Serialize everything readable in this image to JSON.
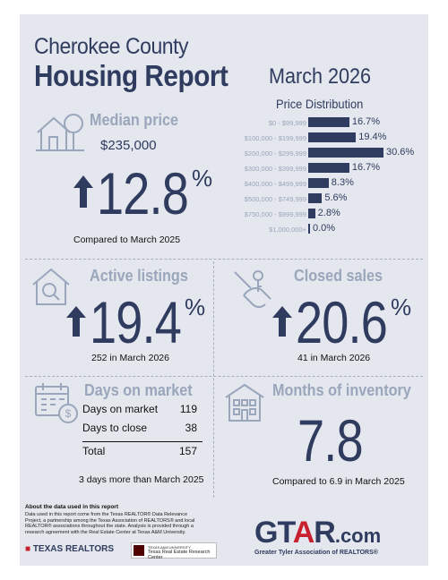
{
  "header": {
    "county": "Cherokee County",
    "report": "Housing Report",
    "month": "March 2026"
  },
  "median_price": {
    "heading": "Median price",
    "price": "$235,000",
    "change": "12.8",
    "pct": "%",
    "compare": "Compared to March 2025",
    "icon": "house-tree-icon"
  },
  "price_distribution": {
    "title": "Price Distribution",
    "rows": [
      {
        "label": "$0 - $99,999",
        "value": 16.7,
        "text": "16.7%"
      },
      {
        "label": "$100,000 - $199,999",
        "value": 19.4,
        "text": "19.4%"
      },
      {
        "label": "$200,000 - $299,999",
        "value": 30.6,
        "text": "30.6%"
      },
      {
        "label": "$300,000 - $399,999",
        "value": 16.7,
        "text": "16.7%"
      },
      {
        "label": "$400,000 - $499,999",
        "value": 8.3,
        "text": "8.3%"
      },
      {
        "label": "$500,000 - $749,999",
        "value": 5.6,
        "text": "5.6%"
      },
      {
        "label": "$750,000 - $999,999",
        "value": 2.8,
        "text": "2.8%"
      },
      {
        "label": "$1,000,000+",
        "value": 0.0,
        "text": "0.0%"
      }
    ]
  },
  "active_listings": {
    "heading": "Active listings",
    "change": "19.4",
    "pct": "%",
    "caption": "252 in March 2026",
    "icon": "house-search-icon"
  },
  "closed_sales": {
    "heading": "Closed sales",
    "change": "20.6",
    "pct": "%",
    "caption": "41 in March 2026",
    "icon": "hand-keys-icon"
  },
  "days_on_market": {
    "heading": "Days on market",
    "rows": [
      {
        "label": "Days on market",
        "value": "119"
      },
      {
        "label": "Days to close",
        "value": "38"
      }
    ],
    "total_label": "Total",
    "total_value": "157",
    "caption": "3 days more than March 2025",
    "icon": "calendar-dollar-icon"
  },
  "months_inventory": {
    "heading": "Months of inventory",
    "value": "7.8",
    "caption": "Compared to 6.9 in March 2025",
    "icon": "building-icon"
  },
  "about": {
    "heading": "About the data used in this report",
    "body": "Data used in this report come from the Texas REALTOR® Data Relevance Project, a partnership among the Texas Association of REALTORS® and local REALTOR® associations throughout the state. Analysis is provided through a research agreement with the Real Estate Center at Texas A&M University."
  },
  "logos": {
    "texas_realtors": "TEXAS REALTORS",
    "tamu_small": "TEXAS A&M UNIVERSITY",
    "tamu_center": "Texas Real Estate Research Center",
    "gtar_g": "GT",
    "gtar_a": "A",
    "gtar_r": "R",
    "gtar_com": ".com",
    "gtar_sub": "Greater Tyler Association of REALTORS®"
  },
  "colors": {
    "navy": "#2f3b5f",
    "steel": "#9aa6bb",
    "background": "#e4e7ed",
    "gtar_red": "#c8202f"
  }
}
